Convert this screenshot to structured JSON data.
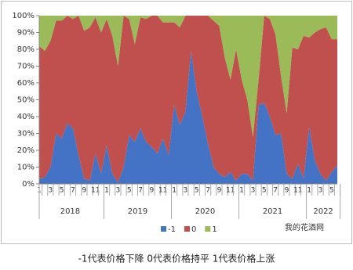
{
  "chart_data": {
    "type": "stacked_area",
    "categories": [
      "1",
      null,
      "3",
      null,
      "5",
      null,
      "7",
      null,
      "9",
      null,
      "11",
      null,
      "1",
      null,
      "3",
      null,
      "5",
      null,
      "7",
      null,
      "9",
      null,
      "11",
      null,
      "1",
      null,
      "3",
      null,
      "5",
      null,
      "7",
      null,
      "9",
      null,
      "11",
      null,
      "1",
      null,
      "3",
      null,
      "5",
      null,
      "7",
      null,
      "9",
      null,
      "11",
      null,
      "1",
      null,
      "3",
      null,
      "5",
      null
    ],
    "years": [
      "2018",
      "2019",
      "2020",
      "2021",
      "2022"
    ],
    "series": [
      {
        "name": "-1",
        "color": "#4472c4",
        "values": [
          3,
          4,
          10,
          30,
          27,
          36,
          33,
          17,
          3,
          2,
          18,
          6,
          23,
          6,
          1,
          10,
          29,
          25,
          33,
          25,
          22,
          18,
          27,
          17,
          47,
          35,
          43,
          79,
          55,
          40,
          24,
          10,
          6,
          4,
          7,
          2,
          6,
          6,
          2,
          47,
          48,
          40,
          29,
          30,
          6,
          3,
          12,
          3,
          34,
          14,
          6,
          2,
          7,
          11
        ]
      },
      {
        "name": "0",
        "color": "#c0504d",
        "values": [
          79,
          75,
          75,
          67,
          70,
          64,
          65,
          83,
          88,
          91,
          81,
          84,
          75,
          82,
          69,
          90,
          69,
          58,
          66,
          73,
          78,
          82,
          69,
          79,
          49,
          58,
          57,
          21,
          45,
          60,
          76,
          87,
          88,
          71,
          55,
          78,
          56,
          44,
          26,
          15,
          52,
          58,
          60,
          34,
          36,
          78,
          68,
          85,
          53,
          76,
          86,
          91,
          79,
          75
        ]
      },
      {
        "name": "1",
        "color": "#9bbb59",
        "values": [
          18,
          21,
          15,
          3,
          3,
          0,
          2,
          0,
          9,
          7,
          1,
          10,
          2,
          12,
          30,
          0,
          2,
          17,
          1,
          2,
          0,
          0,
          4,
          4,
          4,
          7,
          0,
          0,
          0,
          0,
          0,
          3,
          6,
          25,
          38,
          20,
          38,
          50,
          72,
          38,
          0,
          2,
          11,
          36,
          58,
          19,
          20,
          12,
          13,
          10,
          8,
          7,
          14,
          14
        ]
      }
    ],
    "ylim": [
      0,
      100
    ],
    "yticks": [
      {
        "value": 0,
        "label": "0%"
      },
      {
        "value": 10,
        "label": "10%"
      },
      {
        "value": 20,
        "label": "20%"
      },
      {
        "value": 30,
        "label": "30%"
      },
      {
        "value": 40,
        "label": "40%"
      },
      {
        "value": 50,
        "label": "50%"
      },
      {
        "value": 60,
        "label": "60%"
      },
      {
        "value": 70,
        "label": "70%"
      },
      {
        "value": 80,
        "label": "80%"
      },
      {
        "value": 90,
        "label": "90%"
      },
      {
        "value": 100,
        "label": "100%"
      }
    ],
    "legend": "bottom",
    "watermark": "我的花酒网",
    "caption": "-1代表价格下降    0代表价格持平    1代表价格上涨"
  }
}
